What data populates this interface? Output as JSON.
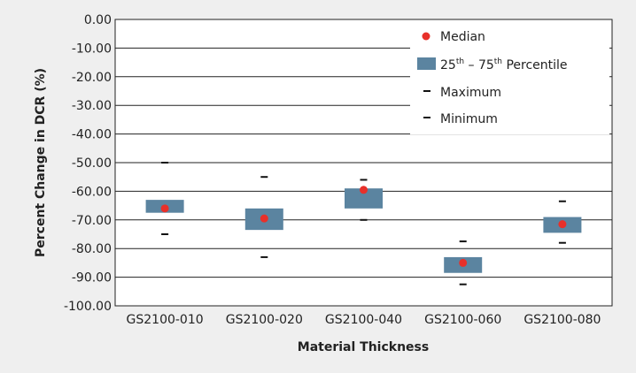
{
  "chart_data": {
    "type": "box",
    "xlabel": "Material Thickness",
    "ylabel": "Percent Change in DCR (%)",
    "ylim": [
      -100,
      0
    ],
    "ytick_step": 10,
    "ytick_labels": [
      "0.00",
      "-10.00",
      "-20.00",
      "-30.00",
      "-40.00",
      "-50.00",
      "-60.00",
      "-70.00",
      "-80.00",
      "-90.00",
      "-100.00"
    ],
    "grid": "horizontal",
    "legend_position": "top-right",
    "categories": [
      "GS2100-010",
      "GS2100-020",
      "GS2100-040",
      "GS2100-060",
      "GS2100-080"
    ],
    "median": [
      -66,
      -69.5,
      -59.5,
      -85,
      -71.5
    ],
    "q1": [
      -67.5,
      -73.5,
      -66,
      -88.5,
      -74.5
    ],
    "q3": [
      -63,
      -66,
      -59,
      -83,
      -69
    ],
    "max": [
      -50,
      -55,
      -56,
      -77.5,
      -63.5
    ],
    "min": [
      -75,
      -83,
      -70,
      -92.5,
      -78
    ],
    "legend": {
      "median": "Median",
      "percentile_prefix_1": "25",
      "percentile_sup_1": "th",
      "percentile_mid": " – 75",
      "percentile_sup_2": "th",
      "percentile_suffix": " Percentile",
      "maximum": "Maximum",
      "minimum": "Minimum"
    },
    "colors": {
      "median": "#e8302a",
      "box": "#5b84a0",
      "marker": "#111111",
      "grid": "#222222",
      "plot_bg": "#ffffff"
    }
  }
}
